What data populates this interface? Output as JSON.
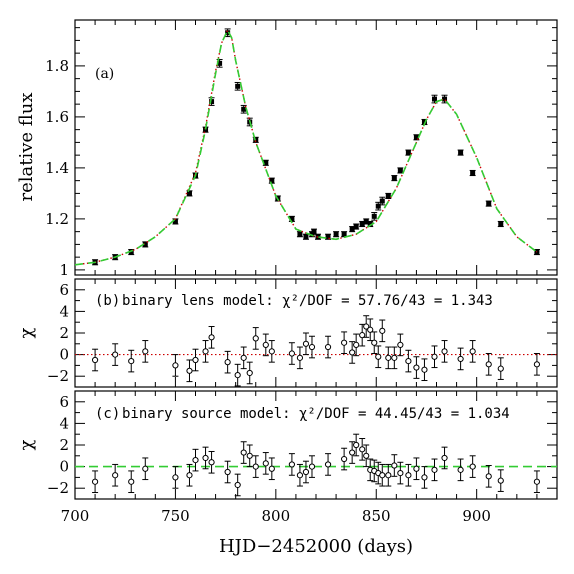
{
  "chart_data": [
    {
      "type": "scatter",
      "panel_label": "(a)",
      "xlabel": "HJD−2452000 (days)",
      "ylabel": "relative flux",
      "xlim": [
        700,
        940
      ],
      "ylim": [
        0.98,
        1.98
      ],
      "x_ticks": [
        700,
        750,
        800,
        850,
        900
      ],
      "y_ticks": [
        1,
        1.2,
        1.4,
        1.6,
        1.8
      ],
      "y_tick_labels": [
        "1",
        "1.2",
        "1.4",
        "1.6",
        "1.8"
      ],
      "series": [
        {
          "role": "data",
          "marker": "filled-square-with-errorbars",
          "color": "#000000",
          "x": [
            710,
            720,
            728,
            735,
            750,
            757,
            760,
            765,
            768,
            772,
            776,
            781,
            784,
            787,
            790,
            795,
            798,
            801,
            808,
            812,
            815,
            818,
            819,
            821,
            826,
            830,
            834,
            838,
            840,
            843,
            845,
            847,
            849,
            851,
            853,
            856,
            859,
            862,
            866,
            870,
            874,
            879,
            884,
            892,
            898,
            906,
            912,
            930
          ],
          "y": [
            1.03,
            1.05,
            1.07,
            1.1,
            1.19,
            1.3,
            1.37,
            1.55,
            1.66,
            1.81,
            1.93,
            1.72,
            1.63,
            1.58,
            1.51,
            1.42,
            1.35,
            1.28,
            1.2,
            1.14,
            1.13,
            1.14,
            1.15,
            1.13,
            1.13,
            1.14,
            1.14,
            1.16,
            1.17,
            1.18,
            1.19,
            1.18,
            1.21,
            1.25,
            1.27,
            1.29,
            1.36,
            1.39,
            1.46,
            1.52,
            1.58,
            1.67,
            1.67,
            1.46,
            1.38,
            1.26,
            1.18,
            1.07
          ],
          "error": [
            0.01,
            0.01,
            0.01,
            0.01,
            0.01,
            0.01,
            0.01,
            0.01,
            0.015,
            0.015,
            0.015,
            0.015,
            0.015,
            0.015,
            0.01,
            0.01,
            0.01,
            0.01,
            0.01,
            0.01,
            0.01,
            0.01,
            0.01,
            0.01,
            0.01,
            0.01,
            0.01,
            0.01,
            0.01,
            0.01,
            0.01,
            0.01,
            0.015,
            0.015,
            0.015,
            0.01,
            0.01,
            0.01,
            0.01,
            0.01,
            0.01,
            0.015,
            0.015,
            0.01,
            0.01,
            0.01,
            0.01,
            0.01
          ]
        },
        {
          "role": "binary-lens-model",
          "line": "dotted",
          "color": "#cc0000",
          "x": [
            700,
            710,
            720,
            730,
            740,
            750,
            760,
            765,
            770,
            773,
            776,
            778,
            780,
            785,
            790,
            800,
            810,
            820,
            830,
            840,
            850,
            860,
            870,
            875,
            880,
            884,
            890,
            900,
            910,
            920,
            930
          ],
          "y": [
            1.02,
            1.03,
            1.05,
            1.08,
            1.13,
            1.2,
            1.38,
            1.56,
            1.78,
            1.89,
            1.94,
            1.91,
            1.82,
            1.64,
            1.5,
            1.29,
            1.16,
            1.13,
            1.12,
            1.14,
            1.19,
            1.32,
            1.5,
            1.59,
            1.66,
            1.67,
            1.61,
            1.44,
            1.24,
            1.13,
            1.07
          ]
        },
        {
          "role": "binary-source-model",
          "line": "dashed",
          "color": "#33cc33",
          "x": [
            700,
            710,
            720,
            730,
            740,
            750,
            760,
            765,
            770,
            773,
            776,
            778,
            780,
            785,
            790,
            800,
            810,
            820,
            830,
            840,
            850,
            860,
            870,
            875,
            880,
            884,
            890,
            900,
            910,
            920,
            930
          ],
          "y": [
            1.02,
            1.03,
            1.05,
            1.08,
            1.13,
            1.2,
            1.37,
            1.55,
            1.77,
            1.89,
            1.94,
            1.91,
            1.82,
            1.64,
            1.5,
            1.29,
            1.16,
            1.13,
            1.12,
            1.14,
            1.19,
            1.32,
            1.5,
            1.59,
            1.66,
            1.67,
            1.61,
            1.44,
            1.24,
            1.13,
            1.07
          ]
        }
      ]
    },
    {
      "type": "scatter",
      "panel_label": "(b)",
      "annotation": "binary lens model: χ²/DOF = 57.76/43 = 1.343",
      "ylabel": "χ",
      "xlim": [
        700,
        940
      ],
      "ylim": [
        -3,
        7
      ],
      "y_ticks": [
        -2,
        0,
        2,
        4,
        6
      ],
      "y_tick_labels": [
        "−2",
        "0",
        "2",
        "4",
        "6"
      ],
      "zero_line": {
        "style": "dotted",
        "color": "#cc0000"
      },
      "series": [
        {
          "role": "residuals",
          "marker": "open-circle-with-errorbars",
          "x": [
            710,
            720,
            728,
            735,
            750,
            757,
            760,
            765,
            768,
            776,
            781,
            784,
            787,
            790,
            795,
            798,
            808,
            812,
            815,
            818,
            826,
            834,
            838,
            840,
            843,
            845,
            847,
            849,
            851,
            853,
            856,
            859,
            862,
            866,
            870,
            874,
            879,
            884,
            892,
            898,
            906,
            912,
            930
          ],
          "y": [
            -0.5,
            0.0,
            -0.6,
            0.3,
            -1.0,
            -1.5,
            -0.5,
            0.3,
            1.6,
            -0.7,
            -1.9,
            -0.3,
            -1.7,
            1.5,
            0.9,
            0.3,
            0.1,
            -0.3,
            1.0,
            0.7,
            0.7,
            1.1,
            0.2,
            0.9,
            1.8,
            2.6,
            2.3,
            1.1,
            -0.2,
            2.2,
            -0.3,
            -0.3,
            0.9,
            -0.6,
            -1.2,
            -1.4,
            -0.2,
            0.3,
            -0.4,
            0.3,
            -0.9,
            -1.3,
            -0.9
          ],
          "error": [
            1,
            1,
            1,
            1,
            1,
            1,
            1,
            1,
            1,
            1,
            1,
            1,
            1,
            1,
            1,
            1,
            1,
            1,
            1,
            1,
            1,
            1,
            1,
            1,
            1,
            1,
            1,
            1,
            1,
            1,
            1,
            1,
            1,
            1,
            1,
            1,
            1,
            1,
            1,
            1,
            1,
            1,
            1
          ]
        }
      ]
    },
    {
      "type": "scatter",
      "panel_label": "(c)",
      "annotation": "binary source model: χ²/DOF = 44.45/43 = 1.034",
      "ylabel": "χ",
      "xlabel": "HJD−2452000 (days)",
      "xlim": [
        700,
        940
      ],
      "ylim": [
        -3,
        7
      ],
      "x_ticks": [
        700,
        750,
        800,
        850,
        900
      ],
      "y_ticks": [
        -2,
        0,
        2,
        4,
        6
      ],
      "y_tick_labels": [
        "−2",
        "0",
        "2",
        "4",
        "6"
      ],
      "zero_line": {
        "style": "dashed",
        "color": "#33cc33"
      },
      "series": [
        {
          "role": "residuals",
          "marker": "open-circle-with-errorbars",
          "x": [
            710,
            720,
            728,
            735,
            750,
            757,
            760,
            765,
            768,
            776,
            781,
            784,
            787,
            790,
            795,
            798,
            808,
            812,
            815,
            818,
            826,
            834,
            838,
            840,
            843,
            845,
            847,
            849,
            851,
            853,
            856,
            859,
            862,
            866,
            870,
            874,
            879,
            884,
            892,
            898,
            906,
            912,
            930
          ],
          "y": [
            -1.4,
            -0.8,
            -1.4,
            -0.2,
            -1.0,
            -0.8,
            0.6,
            0.8,
            0.4,
            -0.5,
            -1.7,
            1.3,
            1.0,
            0.0,
            0.3,
            -0.2,
            0.2,
            -0.8,
            -0.5,
            0.0,
            0.2,
            0.7,
            1.3,
            2.0,
            1.6,
            1.0,
            -0.3,
            -0.4,
            -0.6,
            -0.8,
            -0.8,
            0.1,
            -0.6,
            -0.8,
            -0.2,
            -1.0,
            -0.3,
            0.8,
            -0.3,
            0.0,
            -0.9,
            -1.3,
            -1.4
          ],
          "error": [
            1,
            1,
            1,
            1,
            1,
            1,
            1,
            1,
            1,
            1,
            1,
            1,
            1,
            1,
            1,
            1,
            1,
            1,
            1,
            1,
            1,
            1,
            1,
            1,
            1,
            1,
            1,
            1,
            1,
            1,
            1,
            1,
            1,
            1,
            1,
            1,
            1,
            1,
            1,
            1,
            1,
            1,
            1
          ]
        }
      ]
    }
  ]
}
